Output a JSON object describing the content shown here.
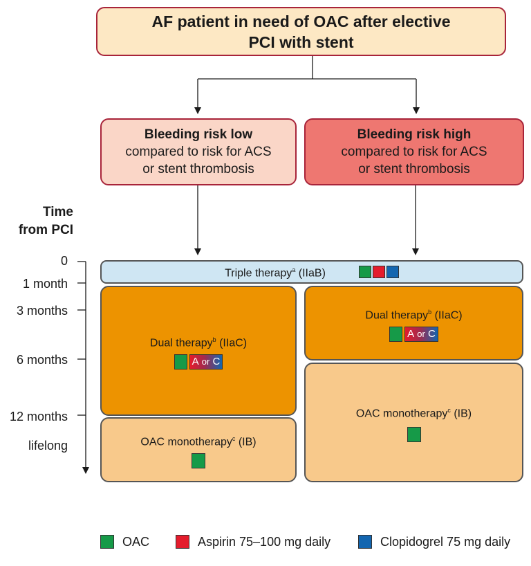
{
  "header": {
    "line1": "AF patient in need of OAC after elective",
    "line2": "PCI with stent"
  },
  "risk_low": {
    "title": "Bleeding risk low",
    "line1": "compared to risk for ACS",
    "line2": "or stent thrombosis"
  },
  "risk_high": {
    "title": "Bleeding risk high",
    "line1": "compared to risk for ACS",
    "line2": "or stent thrombosis"
  },
  "timeline": {
    "title_line1": "Time",
    "title_line2": "from PCI",
    "ticks": [
      "0",
      "1 month",
      "3 months",
      "6 months",
      "12 months",
      "lifelong"
    ]
  },
  "triple": {
    "label": "Triple therapy",
    "sup": "a",
    "class": "(IIaB)"
  },
  "dual": {
    "label": "Dual therapy",
    "sup": "b",
    "class": "(IIaC)",
    "a": "A",
    "or": "or",
    "c": "C"
  },
  "mono": {
    "label": "OAC monotherapy",
    "sup": "c",
    "class": "(IB)"
  },
  "legend": [
    {
      "label": "OAC",
      "color": "#169a48"
    },
    {
      "label": "Aspirin 75–100 mg daily",
      "color": "#e41c2c"
    },
    {
      "label": "Clopidogrel 75 mg daily",
      "color": "#1366b0"
    }
  ]
}
